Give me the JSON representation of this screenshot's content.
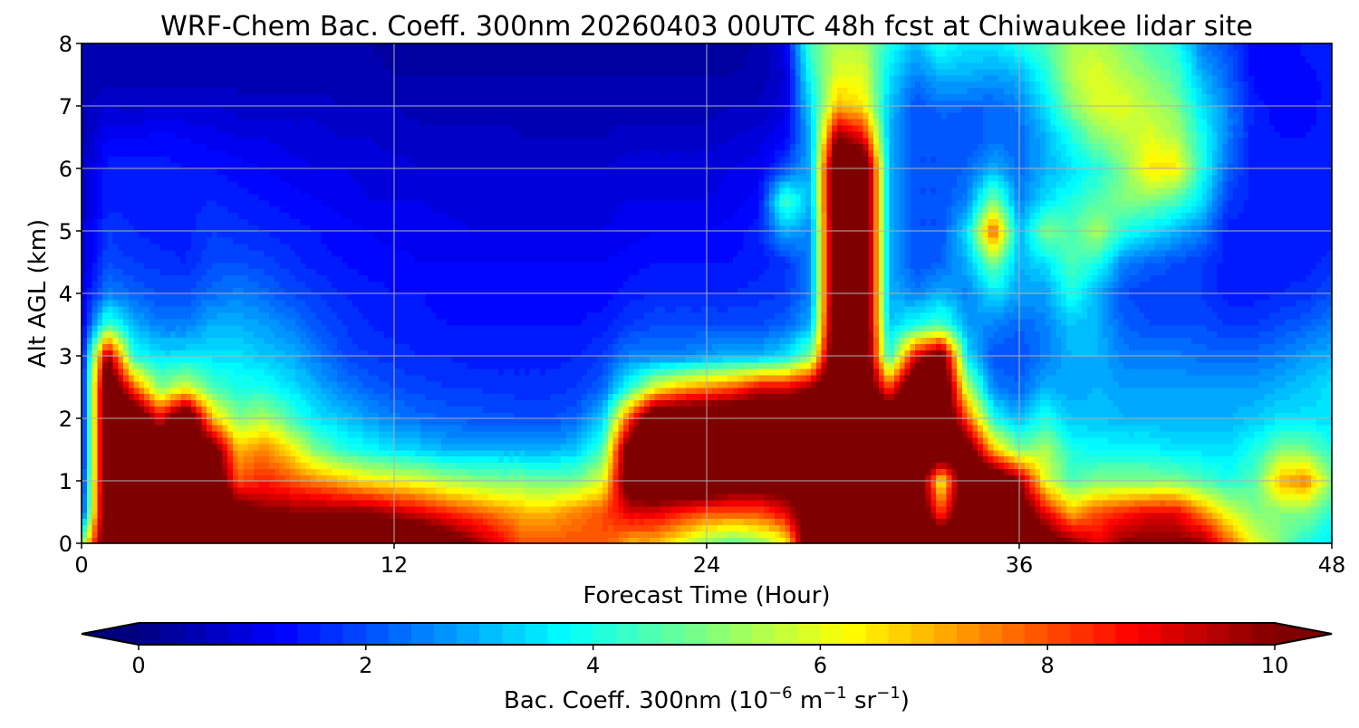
{
  "chart_data": {
    "type": "heatmap",
    "title": "WRF-Chem Bac. Coeff. 300nm  20260403 00UTC 48h fcst at Chiwaukee lidar site",
    "xlabel": "Forecast Time (Hour)",
    "ylabel": "Alt AGL (km)",
    "xlim": [
      0,
      48
    ],
    "ylim": [
      0,
      8
    ],
    "xticks": [
      "0",
      "12",
      "24",
      "36",
      "48"
    ],
    "yticks": [
      "0",
      "1",
      "2",
      "3",
      "4",
      "5",
      "6",
      "7",
      "8"
    ],
    "grid": true,
    "colorbar": {
      "label_main": "Bac. Coeff. 300nm  (10",
      "label_exp1": "−6",
      "label_unit1": " m",
      "label_exp2": "−1",
      "label_unit2": " sr",
      "label_exp3": "−1",
      "label_close": ")",
      "range": [
        0,
        10
      ],
      "levels": 50,
      "ticks": [
        "0",
        "2",
        "4",
        "6",
        "8",
        "10"
      ],
      "extend": "both",
      "colormap": "jet",
      "under_color": "#00007f",
      "over_color": "#7f0000"
    },
    "grid_x_hours": [
      0,
      1,
      2,
      3,
      4,
      5,
      6,
      7,
      8,
      9,
      10,
      11,
      12,
      13,
      14,
      15,
      16,
      17,
      18,
      19,
      20,
      21,
      22,
      23,
      24,
      25,
      26,
      27,
      28,
      29,
      30,
      31,
      32,
      33,
      34,
      35,
      36,
      37,
      38,
      39,
      40,
      41,
      42,
      43,
      44,
      45,
      46,
      47,
      48
    ],
    "grid_y_km": [
      0,
      0.5,
      1,
      1.5,
      2,
      2.5,
      3,
      3.5,
      4,
      4.5,
      5,
      5.5,
      6,
      6.5,
      7,
      7.5,
      8
    ],
    "profiles": [
      [
        5,
        1.5,
        1.2,
        1,
        1,
        1,
        1,
        1,
        1,
        0.8,
        0.8,
        0.6,
        0.6,
        0.5,
        0.5,
        0.4,
        0.4
      ],
      [
        12,
        12,
        12,
        12,
        12,
        12,
        10,
        4.5,
        2.5,
        2,
        1.8,
        1.5,
        1.5,
        1.2,
        0.8,
        0.5,
        0.4
      ],
      [
        12,
        12,
        12,
        12,
        12,
        8,
        4,
        3,
        2.2,
        1.8,
        1.6,
        1.5,
        1.5,
        1.2,
        0.7,
        0.5,
        0.4
      ],
      [
        12,
        12,
        12,
        12,
        9,
        5,
        3.5,
        2.5,
        2,
        1.7,
        1.5,
        1.5,
        1.5,
        1.3,
        0.8,
        0.5,
        0.4
      ],
      [
        12,
        12,
        12,
        11,
        12,
        6,
        3.5,
        2.5,
        2,
        1.6,
        1.5,
        1.5,
        1.4,
        1.2,
        0.8,
        0.5,
        0.4
      ],
      [
        12,
        12,
        12,
        11,
        7,
        4.5,
        3.5,
        3,
        2.3,
        2,
        1.8,
        1.6,
        1.4,
        1.1,
        0.8,
        0.5,
        0.4
      ],
      [
        12,
        11,
        8,
        7,
        5,
        4,
        3.5,
        3,
        2.5,
        2,
        1.7,
        1.5,
        1.3,
        1,
        0.7,
        0.5,
        0.4
      ],
      [
        12,
        10,
        8.5,
        7.5,
        5.5,
        4,
        3.2,
        2.8,
        2.3,
        1.9,
        1.6,
        1.4,
        1.2,
        1,
        0.7,
        0.5,
        0.4
      ],
      [
        12,
        10,
        8,
        6.5,
        4.5,
        3.5,
        3,
        2.5,
        2,
        1.7,
        1.5,
        1.3,
        1.1,
        0.9,
        0.7,
        0.5,
        0.4
      ],
      [
        12,
        10,
        7.5,
        5,
        3.5,
        3,
        2.5,
        2.1,
        1.8,
        1.5,
        1.4,
        1.2,
        1,
        0.9,
        0.7,
        0.5,
        0.4
      ],
      [
        12,
        10,
        7,
        4.2,
        3.2,
        2.5,
        2,
        1.8,
        1.6,
        1.4,
        1.3,
        1.1,
        1,
        0.8,
        0.6,
        0.5,
        0.4
      ],
      [
        12,
        10,
        6.5,
        3.8,
        2.8,
        2.2,
        1.8,
        1.6,
        1.5,
        1.3,
        1.2,
        1,
        0.9,
        0.8,
        0.6,
        0.5,
        0.4
      ],
      [
        12,
        9.5,
        6.2,
        3.5,
        2.5,
        2,
        1.7,
        1.5,
        1.4,
        1.3,
        1.1,
        1,
        0.9,
        0.7,
        0.6,
        0.4,
        0.3
      ],
      [
        12,
        9,
        6,
        3.3,
        2.3,
        1.9,
        1.6,
        1.5,
        1.4,
        1.2,
        1.1,
        1,
        0.8,
        0.7,
        0.5,
        0.4,
        0.3
      ],
      [
        11,
        8.5,
        5.5,
        3,
        2.2,
        1.8,
        1.6,
        1.4,
        1.3,
        1.2,
        1.1,
        0.9,
        0.8,
        0.7,
        0.5,
        0.4,
        0.3
      ],
      [
        10,
        8,
        5.2,
        3,
        2.1,
        1.8,
        1.5,
        1.4,
        1.3,
        1.2,
        1,
        0.9,
        0.8,
        0.7,
        0.5,
        0.4,
        0.3
      ],
      [
        9,
        7.5,
        5,
        3,
        2.1,
        1.7,
        1.5,
        1.4,
        1.3,
        1.2,
        1,
        0.9,
        0.8,
        0.7,
        0.5,
        0.4,
        0.3
      ],
      [
        8,
        7,
        5,
        3,
        2,
        1.7,
        1.5,
        1.4,
        1.3,
        1.2,
        1,
        0.9,
        0.8,
        0.6,
        0.5,
        0.4,
        0.3
      ],
      [
        8,
        7,
        4.8,
        3,
        2,
        1.7,
        1.5,
        1.4,
        1.3,
        1.2,
        1,
        0.9,
        0.8,
        0.6,
        0.5,
        0.4,
        0.3
      ],
      [
        8,
        7.5,
        5,
        3.2,
        2.2,
        1.8,
        1.6,
        1.4,
        1.3,
        1.2,
        1,
        0.9,
        0.8,
        0.6,
        0.5,
        0.4,
        0.3
      ],
      [
        8,
        8,
        6,
        4.5,
        3.2,
        2.2,
        1.8,
        1.5,
        1.3,
        1.2,
        1,
        0.9,
        0.8,
        0.6,
        0.5,
        0.4,
        0.3
      ],
      [
        7,
        9,
        11,
        11,
        8,
        4,
        2.5,
        1.8,
        1.5,
        1.3,
        1.1,
        1,
        0.9,
        0.7,
        0.5,
        0.4,
        0.3
      ],
      [
        7,
        9,
        12,
        12,
        12,
        6,
        2.5,
        2,
        1.6,
        1.4,
        1.2,
        1,
        0.9,
        0.7,
        0.5,
        0.4,
        0.3
      ],
      [
        6,
        8.5,
        12,
        12,
        12,
        7,
        2.5,
        2,
        1.6,
        1.4,
        1.2,
        1,
        0.9,
        0.7,
        0.5,
        0.4,
        0.3
      ],
      [
        5,
        8,
        12,
        12,
        12,
        7.5,
        2.8,
        2,
        1.6,
        1.4,
        1.2,
        1,
        0.9,
        0.7,
        0.5,
        0.4,
        0.3
      ],
      [
        4.5,
        8,
        11,
        12,
        12,
        8,
        3,
        2,
        1.6,
        1.4,
        1.3,
        1.1,
        1,
        0.8,
        0.6,
        0.4,
        0.3
      ],
      [
        5,
        8,
        11,
        12,
        12,
        9,
        3,
        2,
        1.7,
        1.5,
        1.5,
        1.3,
        1.1,
        0.9,
        0.6,
        0.5,
        0.4
      ],
      [
        6,
        9,
        11,
        12,
        12,
        9,
        3.5,
        2.2,
        1.8,
        1.7,
        3,
        4.5,
        2,
        1.2,
        0.9,
        0.8,
        1
      ],
      [
        12,
        11,
        12,
        12,
        12,
        10,
        5,
        3,
        2.5,
        2.5,
        2.5,
        3,
        3,
        3,
        3.5,
        4,
        4.5
      ],
      [
        12,
        12,
        12,
        12,
        12,
        12,
        12,
        12,
        12,
        12,
        12,
        12,
        12,
        10,
        7,
        6,
        5.5
      ],
      [
        12,
        12,
        12,
        12,
        12,
        12,
        12,
        12,
        12,
        12,
        12,
        12,
        12,
        9,
        6.5,
        6,
        5.5
      ],
      [
        12,
        12,
        12,
        12,
        12,
        8,
        4,
        3.2,
        3,
        3,
        3,
        3,
        3,
        3,
        3.2,
        3.5,
        4
      ],
      [
        12,
        12,
        12,
        12,
        12,
        12,
        9,
        4,
        2.5,
        2,
        2,
        2,
        2,
        2,
        2,
        2.5,
        3
      ],
      [
        12,
        8,
        6,
        12,
        12,
        12,
        11,
        4.5,
        3,
        2.2,
        2,
        2,
        2,
        2,
        2.3,
        3,
        4
      ],
      [
        12,
        12,
        12,
        11,
        8,
        5.5,
        3.5,
        2.8,
        2.5,
        3,
        3.5,
        2.5,
        2.2,
        2,
        2.2,
        3,
        3.5
      ],
      [
        12,
        12,
        12,
        7,
        4,
        2.5,
        2,
        2.5,
        3.5,
        5,
        8,
        5,
        3,
        2.3,
        2.2,
        2.8,
        3.5
      ],
      [
        12,
        11,
        10,
        5,
        3,
        2.2,
        2,
        2.2,
        2.8,
        3,
        3,
        2.5,
        2.3,
        2.2,
        2.5,
        3,
        4
      ],
      [
        11,
        9,
        6,
        5.5,
        4,
        3,
        2.5,
        2.5,
        2.8,
        3.5,
        5,
        3.5,
        3,
        3,
        3.5,
        4,
        4.5
      ],
      [
        10,
        7,
        4.5,
        4,
        3.2,
        2.8,
        3,
        3.2,
        4,
        4.5,
        4.5,
        4,
        3.5,
        4,
        5,
        5.5,
        5.5
      ],
      [
        9,
        8,
        5,
        3.8,
        3.2,
        3,
        3,
        3,
        3,
        4,
        5.5,
        4.5,
        4,
        5,
        6,
        6,
        5.5
      ],
      [
        10,
        8.5,
        5,
        3.8,
        3,
        2.8,
        2.5,
        2.2,
        2,
        2.5,
        4,
        5,
        5,
        5.5,
        6,
        5.5,
        5
      ],
      [
        10,
        9,
        5,
        3.8,
        3,
        2.8,
        2.5,
        2,
        1.8,
        2.2,
        3.5,
        5,
        6.5,
        6,
        5.5,
        5,
        4.5
      ],
      [
        10,
        9,
        5,
        3.5,
        3,
        2.8,
        2.5,
        2,
        1.8,
        2,
        3,
        4.5,
        6.5,
        5.5,
        5,
        4.5,
        4
      ],
      [
        10,
        7.5,
        4.5,
        3.5,
        3,
        2.8,
        2.3,
        2,
        1.8,
        1.8,
        2.5,
        3.5,
        4,
        4,
        3.5,
        3,
        2.5
      ],
      [
        8,
        6,
        4,
        3.5,
        3,
        2.8,
        2.3,
        1.8,
        1.5,
        1.5,
        1.5,
        1.8,
        2.2,
        2.5,
        2.5,
        2.2,
        2
      ],
      [
        6,
        5,
        4.5,
        4,
        3.2,
        2.8,
        2.3,
        1.8,
        1.5,
        1.5,
        1.5,
        1.5,
        1.5,
        1.5,
        1.5,
        1.3,
        1.2
      ],
      [
        5,
        5,
        7,
        5,
        3.5,
        3,
        2.5,
        2,
        1.6,
        1.5,
        1.5,
        1.5,
        1.5,
        1.4,
        1.3,
        1.2,
        1.2
      ],
      [
        4,
        5,
        7.5,
        5,
        3.5,
        3.2,
        2.8,
        2.2,
        1.7,
        1.5,
        1.5,
        1.5,
        1.5,
        1.4,
        1.3,
        1.3,
        1.5
      ],
      [
        3.5,
        4,
        5,
        4,
        3.5,
        3.5,
        3,
        2.5,
        2,
        1.7,
        1.5,
        1.5,
        1.5,
        1.5,
        1.5,
        1.5,
        1.5
      ]
    ]
  }
}
